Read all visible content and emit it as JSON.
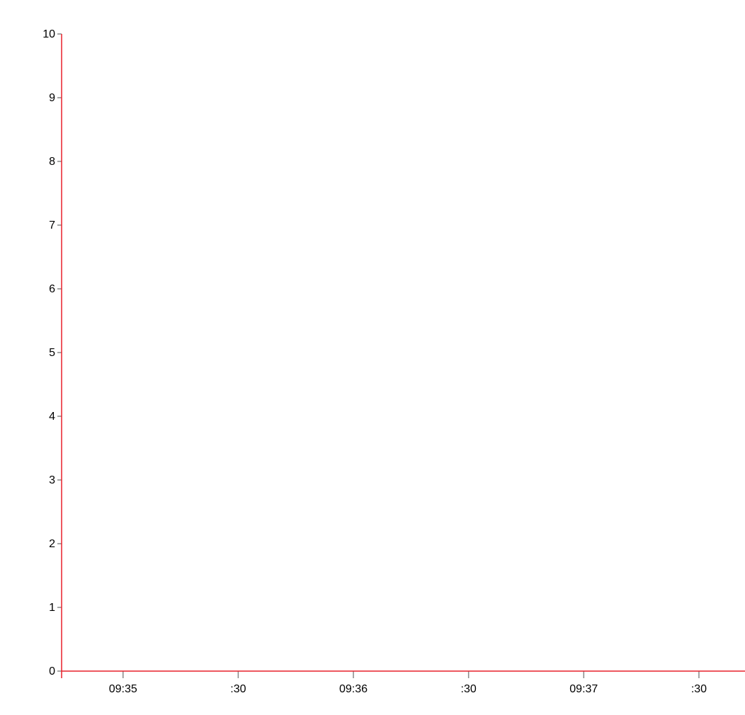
{
  "chart_data": {
    "type": "line",
    "title": "",
    "xlabel": "",
    "ylabel": "",
    "series": [],
    "x_domain": [
      "09:34:44",
      "09:37:42"
    ],
    "ylim": [
      0,
      10
    ],
    "x_ticks": [
      "09:35",
      ":30",
      "09:36",
      ":30",
      "09:37",
      ":30"
    ],
    "x_tick_times": [
      "09:35:00",
      "09:35:30",
      "09:36:00",
      "09:36:30",
      "09:37:00",
      "09:37:30"
    ],
    "y_ticks": [
      "0",
      "1",
      "2",
      "3",
      "4",
      "5",
      "6",
      "7",
      "8",
      "9",
      "10"
    ],
    "grid": false,
    "colors": {
      "axis": "#e8202a",
      "tick": "#888888",
      "text": "#000000"
    }
  }
}
